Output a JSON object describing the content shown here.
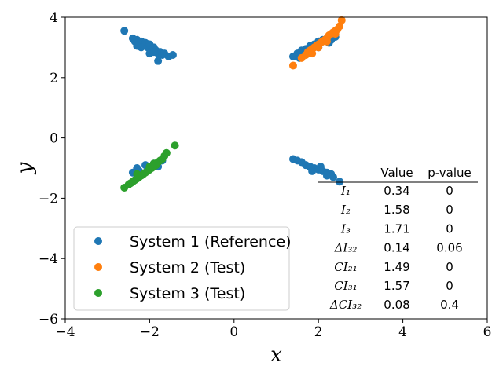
{
  "chart_data": {
    "type": "scatter",
    "xlabel": "x",
    "ylabel": "y",
    "xlim": [
      -4,
      6
    ],
    "ylim": [
      -6,
      4
    ],
    "xticks": [
      -4,
      -2,
      0,
      2,
      4,
      6
    ],
    "yticks": [
      -6,
      -4,
      -2,
      0,
      2,
      4
    ],
    "grid": false,
    "legend_position": "lower-left",
    "series": [
      {
        "name": "System 1 (Reference)",
        "color": "#1f77b4",
        "points": [
          [
            -2.6,
            3.55
          ],
          [
            -2.4,
            3.3
          ],
          [
            -2.35,
            3.2
          ],
          [
            -2.3,
            3.25
          ],
          [
            -2.25,
            3.1
          ],
          [
            -2.2,
            3.2
          ],
          [
            -2.15,
            3.05
          ],
          [
            -2.1,
            3.15
          ],
          [
            -2.05,
            3.0
          ],
          [
            -2.0,
            3.1
          ],
          [
            -1.95,
            2.95
          ],
          [
            -1.9,
            3.0
          ],
          [
            -1.85,
            2.9
          ],
          [
            -1.8,
            2.8
          ],
          [
            -1.75,
            2.85
          ],
          [
            -1.7,
            2.75
          ],
          [
            -1.65,
            2.8
          ],
          [
            -1.55,
            2.7
          ],
          [
            -1.45,
            2.75
          ],
          [
            -1.8,
            2.55
          ],
          [
            -2.2,
            3.0
          ],
          [
            -2.0,
            2.8
          ],
          [
            -1.9,
            2.85
          ],
          [
            -2.3,
            3.05
          ],
          [
            1.4,
            2.7
          ],
          [
            1.5,
            2.8
          ],
          [
            1.6,
            2.9
          ],
          [
            1.7,
            2.95
          ],
          [
            1.8,
            3.05
          ],
          [
            1.9,
            3.1
          ],
          [
            2.0,
            3.2
          ],
          [
            2.1,
            3.25
          ],
          [
            2.2,
            3.3
          ],
          [
            2.3,
            3.25
          ],
          [
            2.4,
            3.35
          ],
          [
            1.55,
            2.65
          ],
          [
            1.75,
            2.8
          ],
          [
            2.0,
            3.0
          ],
          [
            2.25,
            3.15
          ],
          [
            -2.3,
            -1.0
          ],
          [
            -2.25,
            -1.1
          ],
          [
            -2.2,
            -1.2
          ],
          [
            -2.1,
            -0.9
          ],
          [
            -2.0,
            -1.0
          ],
          [
            -1.9,
            -0.85
          ],
          [
            -1.8,
            -0.95
          ],
          [
            -1.7,
            -0.75
          ],
          [
            -2.4,
            -1.15
          ],
          [
            1.4,
            -0.7
          ],
          [
            1.5,
            -0.75
          ],
          [
            1.6,
            -0.8
          ],
          [
            1.7,
            -0.9
          ],
          [
            1.8,
            -0.95
          ],
          [
            1.9,
            -1.0
          ],
          [
            2.0,
            -1.05
          ],
          [
            2.1,
            -1.1
          ],
          [
            2.2,
            -1.15
          ],
          [
            2.3,
            -1.2
          ],
          [
            2.35,
            -1.3
          ],
          [
            2.5,
            -1.45
          ],
          [
            1.85,
            -1.1
          ],
          [
            2.05,
            -0.95
          ],
          [
            2.2,
            -1.25
          ]
        ]
      },
      {
        "name": "System 2 (Test)",
        "color": "#ff7f0e",
        "points": [
          [
            1.4,
            2.4
          ],
          [
            1.6,
            2.65
          ],
          [
            1.7,
            2.75
          ],
          [
            1.75,
            2.85
          ],
          [
            1.8,
            2.9
          ],
          [
            1.85,
            2.95
          ],
          [
            1.9,
            3.0
          ],
          [
            1.95,
            3.05
          ],
          [
            2.0,
            3.1
          ],
          [
            2.05,
            3.15
          ],
          [
            2.1,
            3.2
          ],
          [
            2.15,
            3.25
          ],
          [
            2.2,
            3.3
          ],
          [
            2.25,
            3.4
          ],
          [
            2.3,
            3.45
          ],
          [
            2.35,
            3.5
          ],
          [
            2.4,
            3.55
          ],
          [
            2.45,
            3.6
          ],
          [
            2.5,
            3.7
          ],
          [
            2.55,
            3.9
          ],
          [
            1.85,
            2.8
          ],
          [
            2.0,
            3.0
          ],
          [
            2.2,
            3.2
          ],
          [
            2.4,
            3.45
          ]
        ]
      },
      {
        "name": "System 3 (Test)",
        "color": "#2ca02c",
        "points": [
          [
            -2.6,
            -1.65
          ],
          [
            -2.5,
            -1.55
          ],
          [
            -2.45,
            -1.5
          ],
          [
            -2.4,
            -1.45
          ],
          [
            -2.35,
            -1.4
          ],
          [
            -2.3,
            -1.35
          ],
          [
            -2.25,
            -1.3
          ],
          [
            -2.2,
            -1.25
          ],
          [
            -2.15,
            -1.2
          ],
          [
            -2.1,
            -1.15
          ],
          [
            -2.05,
            -1.1
          ],
          [
            -2.0,
            -1.05
          ],
          [
            -1.95,
            -1.0
          ],
          [
            -1.9,
            -0.95
          ],
          [
            -1.85,
            -0.9
          ],
          [
            -1.8,
            -0.8
          ],
          [
            -1.75,
            -0.75
          ],
          [
            -1.7,
            -0.7
          ],
          [
            -1.65,
            -0.6
          ],
          [
            -1.6,
            -0.5
          ],
          [
            -1.4,
            -0.25
          ],
          [
            -2.3,
            -1.2
          ],
          [
            -2.0,
            -0.95
          ],
          [
            -1.9,
            -0.85
          ]
        ]
      }
    ],
    "table": {
      "headers": [
        "",
        "Value",
        "p-value"
      ],
      "rows": [
        {
          "label": "I₁",
          "value": "0.34",
          "p": "0"
        },
        {
          "label": "I₂",
          "value": "1.58",
          "p": "0"
        },
        {
          "label": "I₃",
          "value": "1.71",
          "p": "0"
        },
        {
          "label": "ΔI₃₂",
          "value": "0.14",
          "p": "0.06"
        },
        {
          "label": "CI₂₁",
          "value": "1.49",
          "p": "0"
        },
        {
          "label": "CI₃₁",
          "value": "1.57",
          "p": "0"
        },
        {
          "label": "ΔCI₃₂",
          "value": "0.08",
          "p": "0.4"
        }
      ]
    }
  }
}
